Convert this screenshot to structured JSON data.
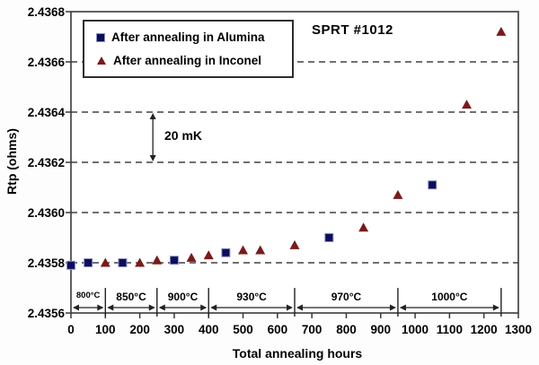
{
  "chart_data": {
    "type": "scatter",
    "title": "SPRT #1012",
    "xlabel": "Total annealing hours",
    "ylabel": "Rtp (ohms)",
    "xlim": [
      0,
      1300
    ],
    "ylim": [
      2.4356,
      2.4368
    ],
    "xtick_step": 100,
    "ytick_step": 0.0002,
    "ytick_decimals": 4,
    "grid": "horizontal-dashed",
    "legend_position": "top-left-inside",
    "colors": {
      "alumina": "#0d0d5e",
      "alumina_border": "#8a92bc",
      "inconel": "#7a1a1a",
      "axis": "#3a3a3a",
      "grid": "#1a1a1a",
      "annotation": "#222222"
    },
    "series": [
      {
        "name": "After annealing in Alumina",
        "marker": "square",
        "color": "#0d0d5e",
        "border": "#8a92bc",
        "points": [
          [
            0,
            2.43579
          ],
          [
            50,
            2.4358
          ],
          [
            150,
            2.4358
          ],
          [
            300,
            2.43581
          ],
          [
            450,
            2.43584
          ],
          [
            750,
            2.4359
          ],
          [
            1050,
            2.43611
          ]
        ]
      },
      {
        "name": "After annealing in Inconel",
        "marker": "triangle",
        "color": "#7a1a1a",
        "points": [
          [
            100,
            2.4358
          ],
          [
            200,
            2.4358
          ],
          [
            250,
            2.43581
          ],
          [
            350,
            2.43582
          ],
          [
            400,
            2.43583
          ],
          [
            500,
            2.43585
          ],
          [
            550,
            2.43585
          ],
          [
            650,
            2.43587
          ],
          [
            850,
            2.43594
          ],
          [
            950,
            2.43607
          ],
          [
            1150,
            2.43643
          ],
          [
            1250,
            2.43672
          ]
        ]
      }
    ],
    "annotations": {
      "sprt_label": "SPRT #1012",
      "delta_label": "20 mK",
      "delta_x": 238,
      "delta_from_y": 2.4362,
      "delta_to_y": 2.4364
    },
    "temperature_segments": [
      {
        "label": "800°C",
        "from": 0,
        "to": 100
      },
      {
        "label": "850°C",
        "from": 100,
        "to": 250
      },
      {
        "label": "900°C",
        "from": 250,
        "to": 400
      },
      {
        "label": "930°C",
        "from": 400,
        "to": 650
      },
      {
        "label": "970°C",
        "from": 650,
        "to": 950
      },
      {
        "label": "1000°C",
        "from": 950,
        "to": 1250
      }
    ]
  }
}
